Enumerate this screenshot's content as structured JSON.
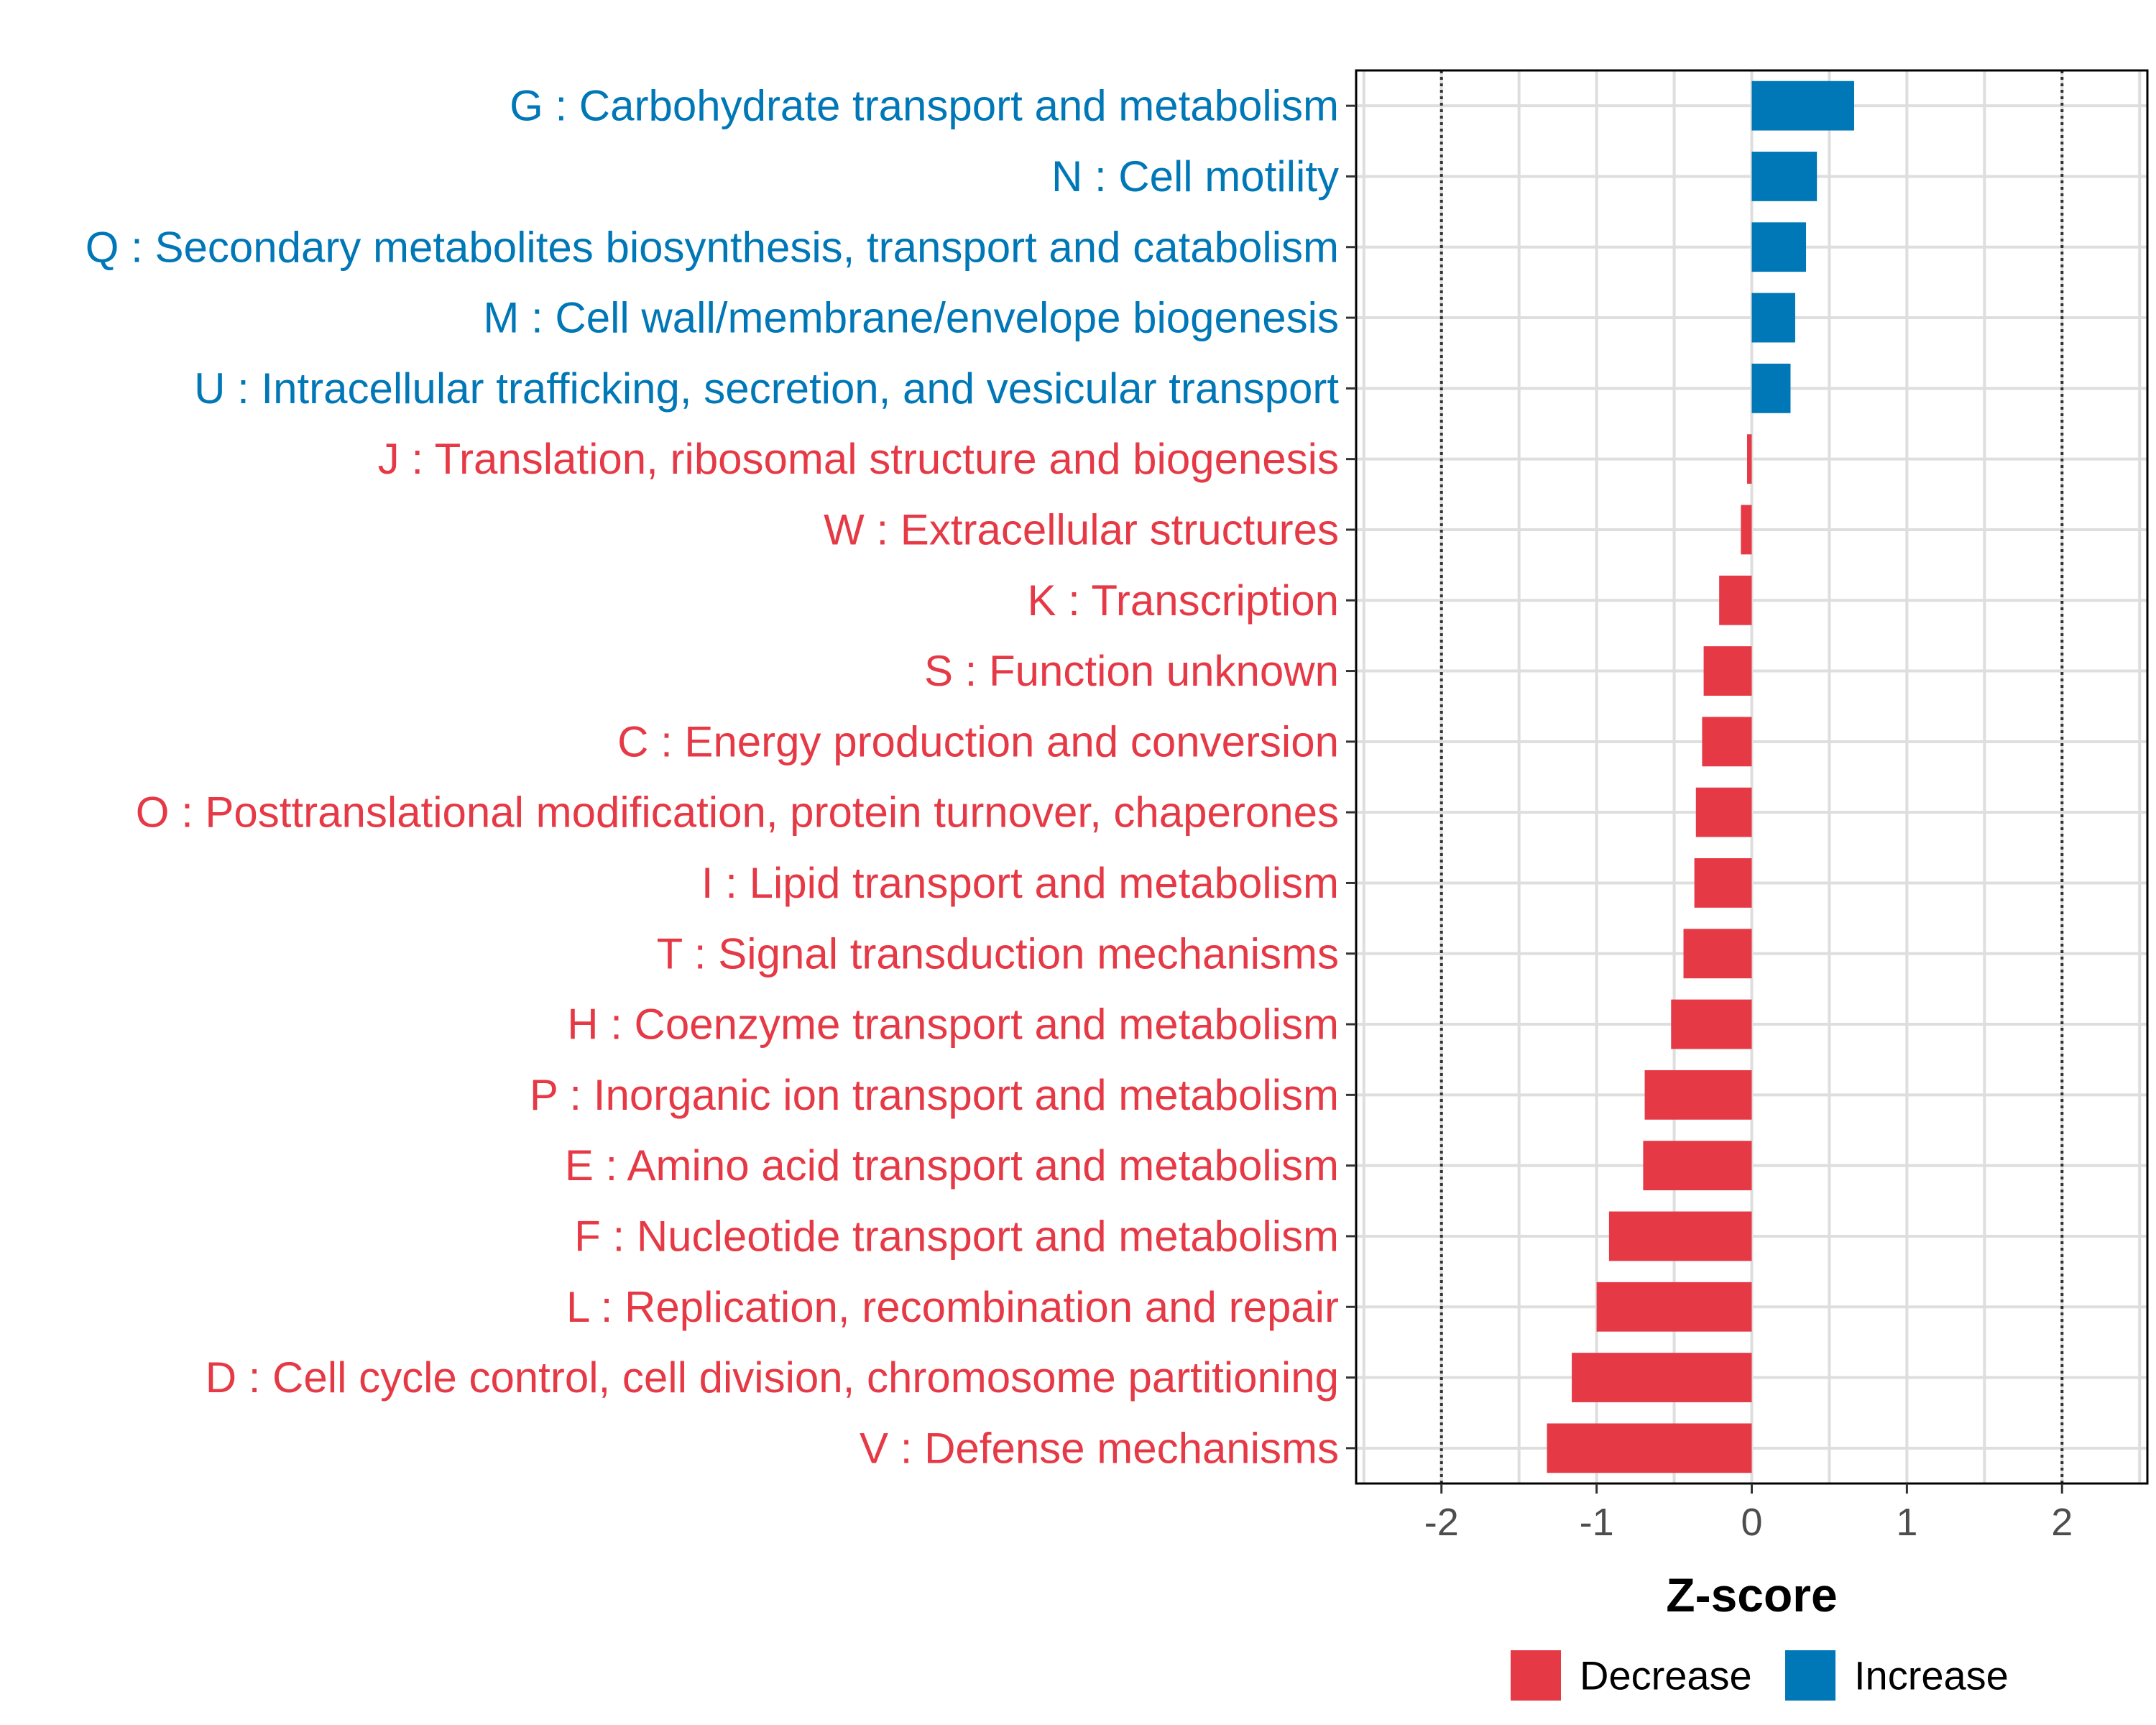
{
  "chart_data": {
    "type": "bar",
    "orientation": "horizontal",
    "xlabel": "Z-score",
    "xlim": [
      -2.55,
      2.55
    ],
    "xticks": [
      -2,
      -1,
      0,
      1,
      2
    ],
    "reference_lines": [
      -2,
      2
    ],
    "grid": true,
    "legend": {
      "position": "bottom",
      "entries": [
        {
          "name": "Decrease",
          "color": "#E63946"
        },
        {
          "name": "Increase",
          "color": "#0077B6"
        }
      ]
    },
    "colors": {
      "Decrease": "#E63946",
      "Increase": "#0077B6"
    },
    "bars": [
      {
        "label": "G : Carbohydrate transport and metabolism",
        "value": 0.66,
        "group": "Increase"
      },
      {
        "label": "N : Cell motility",
        "value": 0.42,
        "group": "Increase"
      },
      {
        "label": "Q : Secondary metabolites biosynthesis, transport and catabolism",
        "value": 0.35,
        "group": "Increase"
      },
      {
        "label": "M : Cell wall/membrane/envelope biogenesis",
        "value": 0.28,
        "group": "Increase"
      },
      {
        "label": "U : Intracellular trafficking, secretion, and vesicular transport",
        "value": 0.25,
        "group": "Increase"
      },
      {
        "label": "J : Translation, ribosomal structure and biogenesis",
        "value": -0.03,
        "group": "Decrease"
      },
      {
        "label": "W : Extracellular structures",
        "value": -0.07,
        "group": "Decrease"
      },
      {
        "label": "K : Transcription",
        "value": -0.21,
        "group": "Decrease"
      },
      {
        "label": "S : Function unknown",
        "value": -0.31,
        "group": "Decrease"
      },
      {
        "label": "C : Energy production and conversion",
        "value": -0.32,
        "group": "Decrease"
      },
      {
        "label": "O : Posttranslational modification, protein turnover, chaperones",
        "value": -0.36,
        "group": "Decrease"
      },
      {
        "label": "I : Lipid transport and metabolism",
        "value": -0.37,
        "group": "Decrease"
      },
      {
        "label": "T : Signal transduction mechanisms",
        "value": -0.44,
        "group": "Decrease"
      },
      {
        "label": "H : Coenzyme transport and metabolism",
        "value": -0.52,
        "group": "Decrease"
      },
      {
        "label": "P : Inorganic ion transport and metabolism",
        "value": -0.69,
        "group": "Decrease"
      },
      {
        "label": "E : Amino acid transport and metabolism",
        "value": -0.7,
        "group": "Decrease"
      },
      {
        "label": "F : Nucleotide transport and metabolism",
        "value": -0.92,
        "group": "Decrease"
      },
      {
        "label": "L : Replication, recombination and repair",
        "value": -1.0,
        "group": "Decrease"
      },
      {
        "label": "D : Cell cycle control, cell division, chromosome partitioning",
        "value": -1.16,
        "group": "Decrease"
      },
      {
        "label": "V : Defense mechanisms",
        "value": -1.32,
        "group": "Decrease"
      }
    ]
  }
}
